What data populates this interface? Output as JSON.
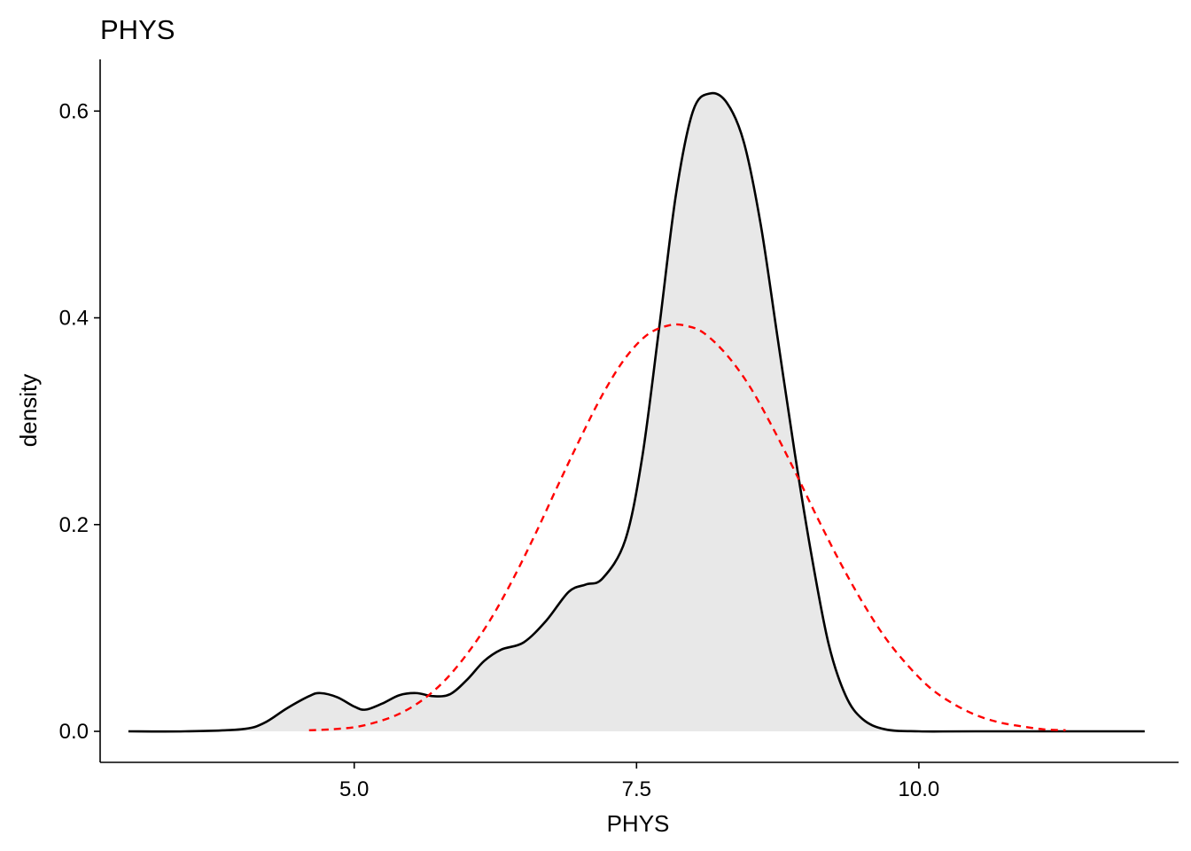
{
  "chart_data": {
    "type": "area",
    "title": "PHYS",
    "xlabel": "PHYS",
    "ylabel": "density",
    "xlim": [
      2.75,
      12.3
    ],
    "ylim": [
      -0.03,
      0.65
    ],
    "x_ticks": [
      {
        "value": 5.0,
        "label": "5.0"
      },
      {
        "value": 7.5,
        "label": "7.5"
      },
      {
        "value": 10.0,
        "label": "10.0"
      }
    ],
    "y_ticks": [
      {
        "value": 0.0,
        "label": "0.0"
      },
      {
        "value": 0.2,
        "label": "0.2"
      },
      {
        "value": 0.4,
        "label": "0.4"
      },
      {
        "value": 0.6,
        "label": "0.6"
      }
    ],
    "grid": false,
    "legend": "none",
    "series": [
      {
        "kind": "density",
        "style": "solid",
        "color": "#000000",
        "fill": "#e8e8e8",
        "x": [
          3.0,
          3.5,
          4.0,
          4.2,
          4.4,
          4.6,
          4.7,
          4.85,
          5.0,
          5.1,
          5.25,
          5.4,
          5.55,
          5.7,
          5.85,
          6.0,
          6.15,
          6.3,
          6.5,
          6.7,
          6.9,
          7.05,
          7.2,
          7.4,
          7.55,
          7.7,
          7.85,
          8.0,
          8.15,
          8.3,
          8.45,
          8.6,
          8.75,
          8.9,
          9.05,
          9.2,
          9.35,
          9.5,
          9.7,
          10.0,
          10.5,
          12.0
        ],
        "y": [
          0.0,
          0.0,
          0.002,
          0.008,
          0.022,
          0.034,
          0.037,
          0.033,
          0.024,
          0.021,
          0.027,
          0.035,
          0.037,
          0.034,
          0.036,
          0.05,
          0.068,
          0.079,
          0.086,
          0.107,
          0.135,
          0.142,
          0.148,
          0.185,
          0.265,
          0.39,
          0.52,
          0.6,
          0.617,
          0.608,
          0.57,
          0.49,
          0.38,
          0.27,
          0.17,
          0.085,
          0.035,
          0.012,
          0.002,
          0.0,
          0.0,
          0.0
        ]
      },
      {
        "kind": "normal",
        "style": "dashed",
        "color": "#ff0000",
        "x": [
          4.6,
          4.8,
          5.0,
          5.2,
          5.4,
          5.6,
          5.8,
          6.0,
          6.2,
          6.4,
          6.6,
          6.8,
          7.0,
          7.2,
          7.4,
          7.6,
          7.8,
          7.95,
          8.1,
          8.3,
          8.5,
          8.7,
          8.9,
          9.1,
          9.3,
          9.5,
          9.7,
          9.9,
          10.1,
          10.3,
          10.5,
          10.7,
          10.9,
          11.1,
          11.3
        ],
        "y": [
          0.001,
          0.002,
          0.004,
          0.009,
          0.017,
          0.03,
          0.049,
          0.075,
          0.107,
          0.146,
          0.19,
          0.237,
          0.283,
          0.326,
          0.361,
          0.384,
          0.393,
          0.392,
          0.385,
          0.364,
          0.334,
          0.295,
          0.252,
          0.207,
          0.164,
          0.125,
          0.091,
          0.064,
          0.042,
          0.027,
          0.016,
          0.009,
          0.005,
          0.002,
          0.001
        ]
      }
    ]
  }
}
